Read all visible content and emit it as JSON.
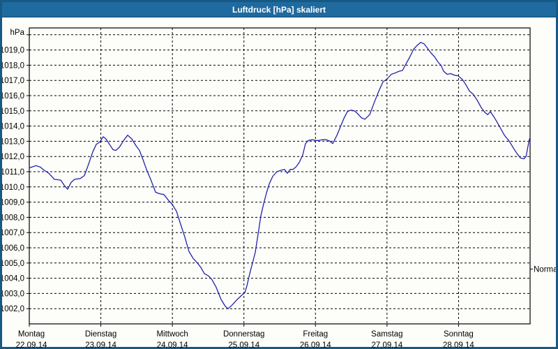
{
  "window": {
    "title": "Luftdruck [hPa] skaliert"
  },
  "colors": {
    "titlebar": "#1f6a9e",
    "border": "#175985",
    "background": "#fdfdfa",
    "line": "#2222aa",
    "grid": "#000000",
    "text": "#000000"
  },
  "chart_data": {
    "type": "line",
    "title": "Luftdruck [hPa] skaliert",
    "grid": "dashed",
    "legend": "none",
    "y_axis": {
      "unit_label": "hPa",
      "min": 1001.0,
      "max": 1020.45,
      "gridline_values": [
        1002,
        1003,
        1004,
        1005,
        1006,
        1007,
        1008,
        1009,
        1010,
        1011,
        1012,
        1013,
        1014,
        1015,
        1016,
        1017,
        1018,
        1019,
        1020
      ],
      "tick_values": [
        1002,
        1003,
        1004,
        1005,
        1006,
        1007,
        1008,
        1009,
        1010,
        1011,
        1012,
        1013,
        1014,
        1015,
        1016,
        1017,
        1018,
        1019
      ],
      "tick_labels": [
        "1002,0",
        "1003,0",
        "1004,0",
        "1005,0",
        "1006,0",
        "1007,0",
        "1008,0",
        "1009,0",
        "1010,0",
        "1011,0",
        "1012,0",
        "1013,0",
        "1014,0",
        "1015,0",
        "1016,0",
        "1017,0",
        "1018,0",
        "1019,0"
      ]
    },
    "x_axis": {
      "min_day": 0,
      "max_day": 7,
      "day_ticks": [
        {
          "day": 0,
          "name": "Montag",
          "date": "22.09.14"
        },
        {
          "day": 1,
          "name": "Dienstag",
          "date": "23.09.14"
        },
        {
          "day": 2,
          "name": "Mittwoch",
          "date": "24.09.14"
        },
        {
          "day": 3,
          "name": "Donnerstag",
          "date": "25.09.14"
        },
        {
          "day": 4,
          "name": "Freitag",
          "date": "26.09.14"
        },
        {
          "day": 5,
          "name": "Samstag",
          "date": "27.09.14"
        },
        {
          "day": 6,
          "name": "Sonntag",
          "date": "28.09.14"
        }
      ]
    },
    "right_axis_marker": {
      "label": "Normal",
      "value": 1004.6
    },
    "series": [
      {
        "name": "Luftdruck",
        "color": "#2222aa",
        "points": [
          [
            0.0,
            1011.25
          ],
          [
            0.029,
            1011.3
          ],
          [
            0.097,
            1011.4
          ],
          [
            0.156,
            1011.3
          ],
          [
            0.205,
            1011.1
          ],
          [
            0.273,
            1010.9
          ],
          [
            0.351,
            1010.5
          ],
          [
            0.439,
            1010.45
          ],
          [
            0.497,
            1010.05
          ],
          [
            0.536,
            1009.85
          ],
          [
            0.585,
            1010.3
          ],
          [
            0.634,
            1010.5
          ],
          [
            0.712,
            1010.55
          ],
          [
            0.77,
            1010.75
          ],
          [
            0.829,
            1011.5
          ],
          [
            0.887,
            1012.3
          ],
          [
            0.936,
            1012.8
          ],
          [
            0.985,
            1012.95
          ],
          [
            1.033,
            1013.3
          ],
          [
            1.072,
            1013.15
          ],
          [
            1.121,
            1012.8
          ],
          [
            1.17,
            1012.45
          ],
          [
            1.209,
            1012.4
          ],
          [
            1.258,
            1012.6
          ],
          [
            1.326,
            1013.1
          ],
          [
            1.375,
            1013.4
          ],
          [
            1.433,
            1013.15
          ],
          [
            1.492,
            1012.7
          ],
          [
            1.54,
            1012.4
          ],
          [
            1.589,
            1011.8
          ],
          [
            1.638,
            1011.15
          ],
          [
            1.696,
            1010.5
          ],
          [
            1.765,
            1009.65
          ],
          [
            1.823,
            1009.55
          ],
          [
            1.882,
            1009.5
          ],
          [
            1.94,
            1009.15
          ],
          [
            1.999,
            1008.85
          ],
          [
            2.057,
            1008.4
          ],
          [
            2.125,
            1007.4
          ],
          [
            2.174,
            1006.7
          ],
          [
            2.233,
            1005.75
          ],
          [
            2.291,
            1005.3
          ],
          [
            2.35,
            1005.0
          ],
          [
            2.399,
            1004.7
          ],
          [
            2.447,
            1004.3
          ],
          [
            2.506,
            1004.15
          ],
          [
            2.554,
            1003.9
          ],
          [
            2.613,
            1003.4
          ],
          [
            2.681,
            1002.6
          ],
          [
            2.74,
            1002.15
          ],
          [
            2.779,
            1002.0
          ],
          [
            2.837,
            1002.25
          ],
          [
            2.905,
            1002.6
          ],
          [
            2.974,
            1002.9
          ],
          [
            3.013,
            1003.05
          ],
          [
            3.042,
            1003.5
          ],
          [
            3.081,
            1004.3
          ],
          [
            3.12,
            1005.0
          ],
          [
            3.159,
            1005.7
          ],
          [
            3.198,
            1006.9
          ],
          [
            3.237,
            1008.1
          ],
          [
            3.276,
            1008.9
          ],
          [
            3.315,
            1009.6
          ],
          [
            3.354,
            1010.2
          ],
          [
            3.403,
            1010.7
          ],
          [
            3.461,
            1011.0
          ],
          [
            3.52,
            1011.1
          ],
          [
            3.568,
            1011.15
          ],
          [
            3.607,
            1010.9
          ],
          [
            3.646,
            1011.15
          ],
          [
            3.685,
            1011.15
          ],
          [
            3.724,
            1011.3
          ],
          [
            3.773,
            1011.6
          ],
          [
            3.822,
            1012.1
          ],
          [
            3.861,
            1012.85
          ],
          [
            3.9,
            1013.05
          ],
          [
            3.958,
            1013.1
          ],
          [
            4.007,
            1013.05
          ],
          [
            4.046,
            1013.05
          ],
          [
            4.095,
            1013.1
          ],
          [
            4.153,
            1013.1
          ],
          [
            4.202,
            1013.0
          ],
          [
            4.241,
            1012.85
          ],
          [
            4.3,
            1013.4
          ],
          [
            4.348,
            1013.95
          ],
          [
            4.397,
            1014.5
          ],
          [
            4.446,
            1014.95
          ],
          [
            4.495,
            1015.05
          ],
          [
            4.543,
            1015.0
          ],
          [
            4.582,
            1014.85
          ],
          [
            4.641,
            1014.55
          ],
          [
            4.69,
            1014.45
          ],
          [
            4.758,
            1014.75
          ],
          [
            4.826,
            1015.6
          ],
          [
            4.885,
            1016.3
          ],
          [
            4.943,
            1016.9
          ],
          [
            5.002,
            1017.1
          ],
          [
            5.06,
            1017.4
          ],
          [
            5.119,
            1017.5
          ],
          [
            5.167,
            1017.6
          ],
          [
            5.216,
            1017.65
          ],
          [
            5.255,
            1018.0
          ],
          [
            5.314,
            1018.5
          ],
          [
            5.372,
            1019.05
          ],
          [
            5.421,
            1019.3
          ],
          [
            5.47,
            1019.5
          ],
          [
            5.519,
            1019.4
          ],
          [
            5.568,
            1019.1
          ],
          [
            5.616,
            1018.8
          ],
          [
            5.665,
            1018.55
          ],
          [
            5.714,
            1018.2
          ],
          [
            5.753,
            1018.0
          ],
          [
            5.792,
            1017.6
          ],
          [
            5.841,
            1017.4
          ],
          [
            5.89,
            1017.45
          ],
          [
            5.938,
            1017.35
          ],
          [
            5.997,
            1017.3
          ],
          [
            6.055,
            1017.05
          ],
          [
            6.104,
            1016.7
          ],
          [
            6.153,
            1016.3
          ],
          [
            6.202,
            1016.1
          ],
          [
            6.26,
            1015.7
          ],
          [
            6.319,
            1015.2
          ],
          [
            6.367,
            1014.9
          ],
          [
            6.406,
            1014.75
          ],
          [
            6.445,
            1014.95
          ],
          [
            6.514,
            1014.45
          ],
          [
            6.582,
            1013.9
          ],
          [
            6.64,
            1013.4
          ],
          [
            6.709,
            1013.0
          ],
          [
            6.767,
            1012.55
          ],
          [
            6.816,
            1012.2
          ],
          [
            6.865,
            1011.9
          ],
          [
            6.913,
            1011.85
          ],
          [
            6.943,
            1012.0
          ],
          [
            6.972,
            1012.7
          ],
          [
            6.991,
            1013.15
          ],
          [
            7.0,
            1013.2
          ]
        ]
      }
    ]
  }
}
